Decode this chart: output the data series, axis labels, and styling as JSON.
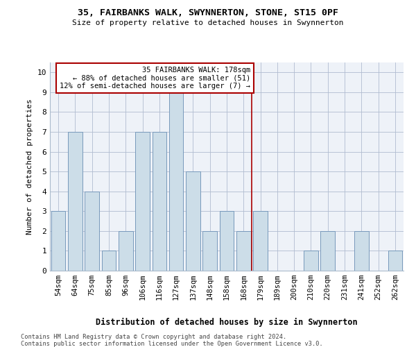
{
  "title1": "35, FAIRBANKS WALK, SWYNNERTON, STONE, ST15 0PF",
  "title2": "Size of property relative to detached houses in Swynnerton",
  "xlabel": "Distribution of detached houses by size in Swynnerton",
  "ylabel": "Number of detached properties",
  "categories": [
    "54sqm",
    "64sqm",
    "75sqm",
    "85sqm",
    "96sqm",
    "106sqm",
    "116sqm",
    "127sqm",
    "137sqm",
    "148sqm",
    "158sqm",
    "168sqm",
    "179sqm",
    "189sqm",
    "200sqm",
    "210sqm",
    "220sqm",
    "231sqm",
    "241sqm",
    "252sqm",
    "262sqm"
  ],
  "values": [
    3,
    7,
    4,
    1,
    2,
    7,
    7,
    9,
    5,
    2,
    3,
    2,
    3,
    0,
    0,
    1,
    2,
    0,
    2,
    0,
    1
  ],
  "bar_color": "#ccdde8",
  "bar_edge_color": "#7799bb",
  "vline_color": "#aa0000",
  "vline_x_idx": 12,
  "annotation_box_color": "#aa0000",
  "reference_label": "35 FAIRBANKS WALK: 178sqm",
  "annotation_line1": "← 88% of detached houses are smaller (51)",
  "annotation_line2": "12% of semi-detached houses are larger (7) →",
  "ylim": [
    0,
    10.5
  ],
  "yticks": [
    0,
    1,
    2,
    3,
    4,
    5,
    6,
    7,
    8,
    9,
    10
  ],
  "footnote1": "Contains HM Land Registry data © Crown copyright and database right 2024.",
  "footnote2": "Contains public sector information licensed under the Open Government Licence v3.0.",
  "bg_color": "#eef2f8"
}
